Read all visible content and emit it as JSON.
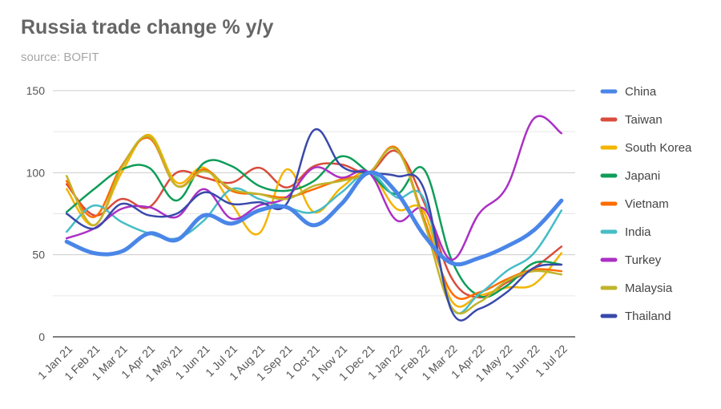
{
  "chart_data": {
    "type": "line",
    "title": "Russia trade change % y/y",
    "subtitle": "source: BOFIT",
    "xlabel": "",
    "ylabel": "",
    "ylim": [
      0,
      150
    ],
    "yticks": [
      0,
      50,
      100,
      150
    ],
    "categories": [
      "1 Jan 21",
      "1 Feb 21",
      "1 Mar 21",
      "1 Apr 21",
      "1 May 21",
      "1 Jun 21",
      "1 Jul 21",
      "1 Aug 21",
      "1 Sep 21",
      "1 Oct 21",
      "1 Nov 21",
      "1 Dec 21",
      "1 Jan 22",
      "1 Feb 22",
      "1 Mar 22",
      "1 Apr 22",
      "1 May 22",
      "1 Jun 22",
      "1 Jul 22"
    ],
    "legend_position": "right",
    "series": [
      {
        "name": "China",
        "color": "#4a86e8",
        "width": 5,
        "values": [
          58,
          51,
          52,
          63,
          59,
          74,
          69,
          77,
          79,
          68,
          81,
          100,
          88,
          62,
          45,
          48,
          55,
          65,
          83
        ]
      },
      {
        "name": "Taiwan",
        "color": "#d94c3d",
        "width": 2.5,
        "values": [
          93,
          74,
          84,
          79,
          100,
          97,
          94,
          103,
          91,
          104,
          105,
          100,
          113,
          82,
          36,
          24,
          33,
          42,
          55
        ]
      },
      {
        "name": "South Korea",
        "color": "#f4b400",
        "width": 2.5,
        "values": [
          90,
          68,
          100,
          123,
          94,
          103,
          81,
          63,
          102,
          76,
          91,
          100,
          78,
          76,
          22,
          25,
          30,
          32,
          51
        ]
      },
      {
        "name": "Japani",
        "color": "#0f9d58",
        "width": 2.5,
        "values": [
          76,
          90,
          102,
          103,
          83,
          106,
          104,
          92,
          89,
          95,
          110,
          100,
          87,
          102,
          47,
          25,
          31,
          45,
          44
        ]
      },
      {
        "name": "Vietnam",
        "color": "#ff6d01",
        "width": 2.5,
        "values": [
          95,
          73,
          104,
          121,
          92,
          102,
          89,
          87,
          85,
          90,
          96,
          100,
          115,
          72,
          27,
          27,
          35,
          41,
          40
        ]
      },
      {
        "name": "India",
        "color": "#46bdc6",
        "width": 2.5,
        "values": [
          64,
          80,
          70,
          63,
          60,
          71,
          90,
          84,
          79,
          76,
          88,
          100,
          85,
          84,
          18,
          26,
          40,
          51,
          77
        ]
      },
      {
        "name": "Turkey",
        "color": "#ab30c4",
        "width": 2.5,
        "values": [
          60,
          66,
          78,
          79,
          73,
          90,
          72,
          80,
          85,
          103,
          97,
          100,
          71,
          78,
          47,
          75,
          91,
          133,
          124
        ]
      },
      {
        "name": "Malaysia",
        "color": "#bfb42a",
        "width": 2.5,
        "values": [
          98,
          68,
          103,
          122,
          92,
          101,
          90,
          87,
          84,
          92,
          95,
          100,
          114,
          70,
          18,
          21,
          34,
          40,
          38
        ]
      },
      {
        "name": "Thailand",
        "color": "#3949ab",
        "width": 2.5,
        "values": [
          75,
          66,
          81,
          74,
          75,
          88,
          81,
          82,
          81,
          126,
          104,
          100,
          98,
          90,
          16,
          17,
          27,
          42,
          44
        ]
      }
    ]
  }
}
